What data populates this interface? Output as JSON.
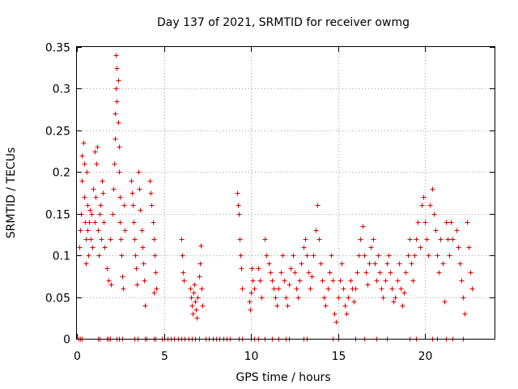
{
  "chart_data": {
    "type": "scatter",
    "title": "Day 137 of 2021, SRMTID for receiver owmg",
    "xlabel": "GPS time / hours",
    "ylabel": "SRMTID / TECUs",
    "xlim": [
      0,
      24
    ],
    "ylim": [
      0,
      0.35
    ],
    "xticks": [
      0,
      5,
      10,
      15,
      20
    ],
    "xtick_labels": [
      "0",
      "5",
      "10",
      "15",
      "20"
    ],
    "yticks": [
      0,
      0.05,
      0.1,
      0.15,
      0.2,
      0.25,
      0.3,
      0.35
    ],
    "ytick_labels": [
      "0",
      "0.05",
      "0.1",
      "0.15",
      "0.2",
      "0.25",
      "0.3",
      "0.35"
    ],
    "grid": true,
    "marker": "plus",
    "marker_color": "#e00000",
    "series": [
      {
        "name": "SRMTID",
        "points": [
          [
            0.1,
            0
          ],
          [
            0.2,
            0
          ],
          [
            0.3,
            0
          ],
          [
            1.2,
            0
          ],
          [
            1.3,
            0
          ],
          [
            1.7,
            0
          ],
          [
            1.8,
            0
          ],
          [
            1.9,
            0
          ],
          [
            2.3,
            0
          ],
          [
            2.4,
            0
          ],
          [
            2.6,
            0
          ],
          [
            3.3,
            0
          ],
          [
            3.5,
            0
          ],
          [
            3.9,
            0
          ],
          [
            4.0,
            0
          ],
          [
            4.4,
            0
          ],
          [
            4.5,
            0
          ],
          [
            4.9,
            0
          ],
          [
            5.0,
            0
          ],
          [
            5.2,
            0
          ],
          [
            5.4,
            0
          ],
          [
            5.6,
            0
          ],
          [
            5.8,
            0
          ],
          [
            6.0,
            0
          ],
          [
            6.2,
            0
          ],
          [
            6.4,
            0
          ],
          [
            6.6,
            0
          ],
          [
            6.8,
            0
          ],
          [
            7.0,
            0
          ],
          [
            7.4,
            0
          ],
          [
            7.6,
            0
          ],
          [
            7.8,
            0
          ],
          [
            8.0,
            0
          ],
          [
            8.2,
            0
          ],
          [
            8.4,
            0
          ],
          [
            8.6,
            0
          ],
          [
            8.8,
            0
          ],
          [
            9.3,
            0
          ],
          [
            9.5,
            0
          ],
          [
            10.0,
            0
          ],
          [
            10.2,
            0
          ],
          [
            10.4,
            0
          ],
          [
            10.8,
            0
          ],
          [
            11.2,
            0
          ],
          [
            11.6,
            0
          ],
          [
            12.0,
            0
          ],
          [
            12.2,
            0
          ],
          [
            13.0,
            0
          ],
          [
            13.2,
            0
          ],
          [
            14.7,
            0
          ],
          [
            15.0,
            0
          ],
          [
            16.0,
            0
          ],
          [
            16.5,
            0
          ],
          [
            17.2,
            0
          ],
          [
            17.8,
            0
          ],
          [
            19.1,
            0
          ],
          [
            19.5,
            0
          ],
          [
            20.4,
            0
          ],
          [
            20.7,
            0
          ],
          [
            21.2,
            0
          ],
          [
            21.6,
            0
          ],
          [
            22.2,
            0
          ],
          [
            0.15,
            0.11
          ],
          [
            0.2,
            0.13
          ],
          [
            0.25,
            0.15
          ],
          [
            0.3,
            0.19
          ],
          [
            0.3,
            0.22
          ],
          [
            0.35,
            0.235
          ],
          [
            0.4,
            0.21
          ],
          [
            0.4,
            0.17
          ],
          [
            0.45,
            0.14
          ],
          [
            0.5,
            0.12
          ],
          [
            0.5,
            0.09
          ],
          [
            0.55,
            0.2
          ],
          [
            0.6,
            0.16
          ],
          [
            0.6,
            0.13
          ],
          [
            0.65,
            0.1
          ],
          [
            0.7,
            0.14
          ],
          [
            0.75,
            0.155
          ],
          [
            0.8,
            0.12
          ],
          [
            0.85,
            0.15
          ],
          [
            0.9,
            0.11
          ],
          [
            0.95,
            0.18
          ],
          [
            1.0,
            0.225
          ],
          [
            1.0,
            0.14
          ],
          [
            1.05,
            0.17
          ],
          [
            1.1,
            0.21
          ],
          [
            1.15,
            0.23
          ],
          [
            1.2,
            0.13
          ],
          [
            1.25,
            0.1
          ],
          [
            1.3,
            0.15
          ],
          [
            1.35,
            0.16
          ],
          [
            1.4,
            0.12
          ],
          [
            1.45,
            0.19
          ],
          [
            1.5,
            0.175
          ],
          [
            1.55,
            0.14
          ],
          [
            1.6,
            0.11
          ],
          [
            1.7,
            0.085
          ],
          [
            1.8,
            0.07
          ],
          [
            1.9,
            0.12
          ],
          [
            1.95,
            0.065
          ],
          [
            2.05,
            0.15
          ],
          [
            2.1,
            0.18
          ],
          [
            2.15,
            0.21
          ],
          [
            2.2,
            0.24
          ],
          [
            2.2,
            0.27
          ],
          [
            2.25,
            0.3
          ],
          [
            2.25,
            0.34
          ],
          [
            2.3,
            0.325
          ],
          [
            2.3,
            0.285
          ],
          [
            2.35,
            0.31
          ],
          [
            2.35,
            0.26
          ],
          [
            2.4,
            0.23
          ],
          [
            2.4,
            0.2
          ],
          [
            2.45,
            0.17
          ],
          [
            2.45,
            0.14
          ],
          [
            2.5,
            0.12
          ],
          [
            2.55,
            0.1
          ],
          [
            2.6,
            0.075
          ],
          [
            2.65,
            0.06
          ],
          [
            2.7,
            0.16
          ],
          [
            2.75,
            0.13
          ],
          [
            3.1,
            0.19
          ],
          [
            3.15,
            0.175
          ],
          [
            3.2,
            0.16
          ],
          [
            3.25,
            0.14
          ],
          [
            3.3,
            0.12
          ],
          [
            3.35,
            0.1
          ],
          [
            3.4,
            0.085
          ],
          [
            3.45,
            0.065
          ],
          [
            3.55,
            0.2
          ],
          [
            3.6,
            0.18
          ],
          [
            3.65,
            0.155
          ],
          [
            3.7,
            0.13
          ],
          [
            3.75,
            0.11
          ],
          [
            3.8,
            0.09
          ],
          [
            3.85,
            0.07
          ],
          [
            3.9,
            0.04
          ],
          [
            4.2,
            0.19
          ],
          [
            4.25,
            0.175
          ],
          [
            4.3,
            0.16
          ],
          [
            4.35,
            0.14
          ],
          [
            4.4,
            0.12
          ],
          [
            4.45,
            0.1
          ],
          [
            4.5,
            0.08
          ],
          [
            4.55,
            0.06
          ],
          [
            4.4,
            0.055
          ],
          [
            6.0,
            0.12
          ],
          [
            6.05,
            0.1
          ],
          [
            6.1,
            0.08
          ],
          [
            6.15,
            0.07
          ],
          [
            6.5,
            0.06
          ],
          [
            6.55,
            0.05
          ],
          [
            6.6,
            0.04
          ],
          [
            6.65,
            0.03
          ],
          [
            6.7,
            0.055
          ],
          [
            6.75,
            0.065
          ],
          [
            6.8,
            0.045
          ],
          [
            6.85,
            0.035
          ],
          [
            6.9,
            0.025
          ],
          [
            6.95,
            0.05
          ],
          [
            7.0,
            0.075
          ],
          [
            7.05,
            0.09
          ],
          [
            7.1,
            0.112
          ],
          [
            7.15,
            0.06
          ],
          [
            7.2,
            0.04
          ],
          [
            9.2,
            0.175
          ],
          [
            9.25,
            0.16
          ],
          [
            9.3,
            0.15
          ],
          [
            9.35,
            0.12
          ],
          [
            9.4,
            0.1
          ],
          [
            9.45,
            0.085
          ],
          [
            9.5,
            0.06
          ],
          [
            9.9,
            0.045
          ],
          [
            9.95,
            0.035
          ],
          [
            10.0,
            0.055
          ],
          [
            10.05,
            0.085
          ],
          [
            10.1,
            0.07
          ],
          [
            10.2,
            0.06
          ],
          [
            10.4,
            0.085
          ],
          [
            10.5,
            0.07
          ],
          [
            10.6,
            0.05
          ],
          [
            10.8,
            0.12
          ],
          [
            10.9,
            0.1
          ],
          [
            11.0,
            0.09
          ],
          [
            11.1,
            0.08
          ],
          [
            11.2,
            0.07
          ],
          [
            11.3,
            0.06
          ],
          [
            11.4,
            0.05
          ],
          [
            11.5,
            0.04
          ],
          [
            11.6,
            0.06
          ],
          [
            11.7,
            0.08
          ],
          [
            11.8,
            0.1
          ],
          [
            11.9,
            0.07
          ],
          [
            12.0,
            0.05
          ],
          [
            12.1,
            0.04
          ],
          [
            12.2,
            0.065
          ],
          [
            12.3,
            0.085
          ],
          [
            12.4,
            0.1
          ],
          [
            12.5,
            0.08
          ],
          [
            12.6,
            0.06
          ],
          [
            12.7,
            0.05
          ],
          [
            12.8,
            0.07
          ],
          [
            12.9,
            0.09
          ],
          [
            13.0,
            0.11
          ],
          [
            13.1,
            0.12
          ],
          [
            13.2,
            0.1
          ],
          [
            13.3,
            0.08
          ],
          [
            13.4,
            0.06
          ],
          [
            13.5,
            0.075
          ],
          [
            13.6,
            0.1
          ],
          [
            13.7,
            0.13
          ],
          [
            13.8,
            0.16
          ],
          [
            13.9,
            0.12
          ],
          [
            14.0,
            0.09
          ],
          [
            14.1,
            0.07
          ],
          [
            14.2,
            0.05
          ],
          [
            14.3,
            0.04
          ],
          [
            14.4,
            0.06
          ],
          [
            14.5,
            0.08
          ],
          [
            14.6,
            0.1
          ],
          [
            14.7,
            0.07
          ],
          [
            14.8,
            0.03
          ],
          [
            14.9,
            0.02
          ],
          [
            15.0,
            0.05
          ],
          [
            15.1,
            0.07
          ],
          [
            15.2,
            0.09
          ],
          [
            15.3,
            0.06
          ],
          [
            15.4,
            0.04
          ],
          [
            15.5,
            0.03
          ],
          [
            15.6,
            0.05
          ],
          [
            15.7,
            0.07
          ],
          [
            15.8,
            0.06
          ],
          [
            15.9,
            0.045
          ],
          [
            16.0,
            0.06
          ],
          [
            16.1,
            0.08
          ],
          [
            16.2,
            0.1
          ],
          [
            16.3,
            0.12
          ],
          [
            16.4,
            0.135
          ],
          [
            16.5,
            0.1
          ],
          [
            16.6,
            0.08
          ],
          [
            16.7,
            0.065
          ],
          [
            16.8,
            0.09
          ],
          [
            16.9,
            0.11
          ],
          [
            17.0,
            0.12
          ],
          [
            17.1,
            0.09
          ],
          [
            17.2,
            0.07
          ],
          [
            17.3,
            0.1
          ],
          [
            17.4,
            0.08
          ],
          [
            17.5,
            0.06
          ],
          [
            17.6,
            0.05
          ],
          [
            17.7,
            0.07
          ],
          [
            17.8,
            0.09
          ],
          [
            17.9,
            0.1
          ],
          [
            18.0,
            0.08
          ],
          [
            18.1,
            0.06
          ],
          [
            18.2,
            0.045
          ],
          [
            18.3,
            0.05
          ],
          [
            18.4,
            0.07
          ],
          [
            18.5,
            0.09
          ],
          [
            18.6,
            0.06
          ],
          [
            18.7,
            0.04
          ],
          [
            18.8,
            0.055
          ],
          [
            18.9,
            0.08
          ],
          [
            19.0,
            0.1
          ],
          [
            19.1,
            0.12
          ],
          [
            19.2,
            0.09
          ],
          [
            19.3,
            0.07
          ],
          [
            19.4,
            0.1
          ],
          [
            19.5,
            0.12
          ],
          [
            19.6,
            0.14
          ],
          [
            19.7,
            0.11
          ],
          [
            19.8,
            0.16
          ],
          [
            19.9,
            0.17
          ],
          [
            20.0,
            0.14
          ],
          [
            20.1,
            0.12
          ],
          [
            20.2,
            0.1
          ],
          [
            20.3,
            0.16
          ],
          [
            20.4,
            0.18
          ],
          [
            20.5,
            0.15
          ],
          [
            20.6,
            0.13
          ],
          [
            20.7,
            0.1
          ],
          [
            20.8,
            0.08
          ],
          [
            20.9,
            0.12
          ],
          [
            21.0,
            0.09
          ],
          [
            21.1,
            0.045
          ],
          [
            21.2,
            0.14
          ],
          [
            21.3,
            0.12
          ],
          [
            21.4,
            0.1
          ],
          [
            21.5,
            0.14
          ],
          [
            21.6,
            0.12
          ],
          [
            21.8,
            0.13
          ],
          [
            21.9,
            0.11
          ],
          [
            22.0,
            0.09
          ],
          [
            22.1,
            0.07
          ],
          [
            22.2,
            0.05
          ],
          [
            22.3,
            0.03
          ],
          [
            22.4,
            0.14
          ],
          [
            22.5,
            0.11
          ],
          [
            22.6,
            0.08
          ],
          [
            22.7,
            0.06
          ]
        ]
      }
    ]
  }
}
